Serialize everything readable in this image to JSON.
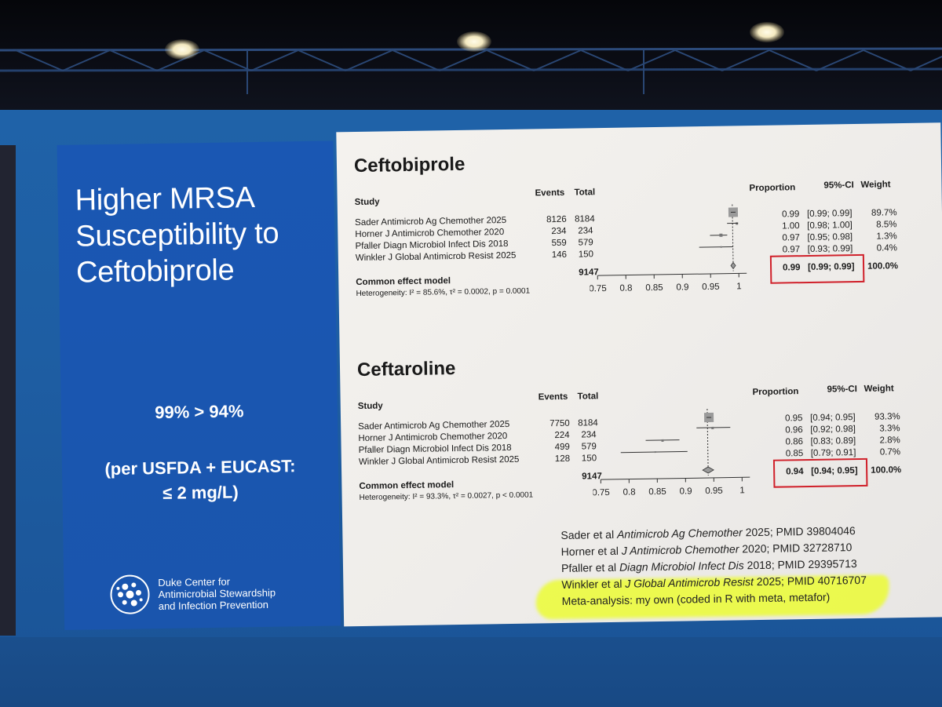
{
  "slide_title": "Higher MRSA Susceptibility to Ceftobiprole",
  "claim": "99% > 94%",
  "claim_note_line1": "(per USFDA + EUCAST:",
  "claim_note_line2": "≤ 2 mg/L)",
  "logo": {
    "line1": "Duke Center for",
    "line2": "Antimicrobial Stewardship",
    "line3": "and Infection Prevention"
  },
  "headers": {
    "study": "Study",
    "events": "Events",
    "total": "Total",
    "proportion": "Proportion",
    "ci": "95%-CI",
    "weight": "Weight"
  },
  "ceftobiprole": {
    "title": "Ceftobiprole",
    "studies": [
      {
        "name": "Sader Antimicrob Ag Chemother 2025",
        "events": "8126",
        "total": "8184",
        "prop": "0.99",
        "ci": "[0.99; 0.99]",
        "weight": "89.7%"
      },
      {
        "name": "Horner J Antimicrob Chemother 2020",
        "events": "234",
        "total": "234",
        "prop": "1.00",
        "ci": "[0.98; 1.00]",
        "weight": "8.5%"
      },
      {
        "name": "Pfaller Diagn Microbiol Infect Dis 2018",
        "events": "559",
        "total": "579",
        "prop": "0.97",
        "ci": "[0.95; 0.98]",
        "weight": "1.3%"
      },
      {
        "name": "Winkler J Global Antimicrob Resist 2025",
        "events": "146",
        "total": "150",
        "prop": "0.97",
        "ci": "[0.93; 0.99]",
        "weight": "0.4%"
      }
    ],
    "common_label": "Common effect model",
    "common_total": "9147",
    "common_prop": "0.99",
    "common_ci": "[0.99; 0.99]",
    "common_weight": "100.0%",
    "heterogeneity": "Heterogeneity: I² = 85.6%, τ² = 0.0002, p = 0.0001",
    "axis_ticks": [
      "0.75",
      "0.8",
      "0.85",
      "0.9",
      "0.95",
      "1"
    ]
  },
  "ceftaroline": {
    "title": "Ceftaroline",
    "studies": [
      {
        "name": "Sader Antimicrob Ag Chemother 2025",
        "events": "7750",
        "total": "8184",
        "prop": "0.95",
        "ci": "[0.94; 0.95]",
        "weight": "93.3%"
      },
      {
        "name": "Horner J Antimicrob Chemother 2020",
        "events": "224",
        "total": "234",
        "prop": "0.96",
        "ci": "[0.92; 0.98]",
        "weight": "3.3%"
      },
      {
        "name": "Pfaller Diagn Microbiol Infect Dis 2018",
        "events": "499",
        "total": "579",
        "prop": "0.86",
        "ci": "[0.83; 0.89]",
        "weight": "2.8%"
      },
      {
        "name": "Winkler J Global Antimicrob Resist 2025",
        "events": "128",
        "total": "150",
        "prop": "0.85",
        "ci": "[0.79; 0.91]",
        "weight": "0.7%"
      }
    ],
    "common_label": "Common effect model",
    "common_total": "9147",
    "common_prop": "0.94",
    "common_ci": "[0.94; 0.95]",
    "common_weight": "100.0%",
    "heterogeneity": "Heterogeneity: I² = 93.3%, τ² = 0.0027, p < 0.0001",
    "axis_ticks": [
      "0.75",
      "0.8",
      "0.85",
      "0.9",
      "0.95",
      "1"
    ]
  },
  "refs": [
    {
      "pre": "Sader et al ",
      "journal": "Antimicrob Ag Chemother",
      "post": " 2025; PMID 39804046"
    },
    {
      "pre": "Horner et al ",
      "journal": "J Antimicrob Chemother",
      "post": " 2020; PMID 32728710"
    },
    {
      "pre": "Pfaller et al ",
      "journal": "Diagn Microbiol Infect Dis",
      "post": " 2018; PMID 29395713"
    },
    {
      "pre": "Winkler et al ",
      "journal": "J Global Antimicrob Resist",
      "post": " 2025; PMID 40716707"
    }
  ],
  "meta_note": "Meta-analysis: my own (coded in R with meta, metafor)",
  "colors": {
    "slide_blue": "#1a57b3",
    "highlight_red": "#d0202a",
    "marker_yellow": "#ecff14"
  }
}
